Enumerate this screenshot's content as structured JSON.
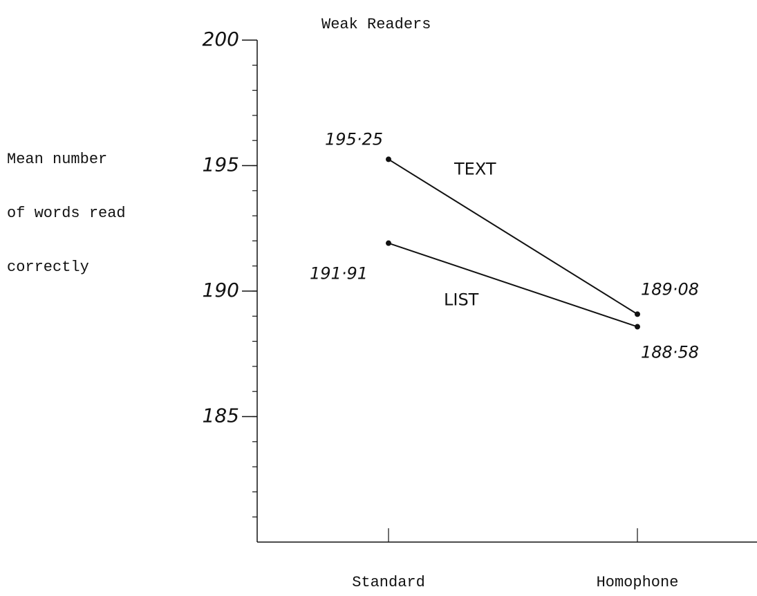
{
  "chart_data": {
    "type": "line",
    "title": "Weak Readers",
    "ylabel": [
      "Mean number",
      "of words read",
      "correctly"
    ],
    "categories": [
      "Standard",
      "Homophone"
    ],
    "series": [
      {
        "name": "TEXT",
        "color": "#111111",
        "values": [
          195.25,
          189.08
        ],
        "value_labels": [
          "195·25",
          "189·08"
        ]
      },
      {
        "name": "LIST",
        "color": "#111111",
        "values": [
          191.91,
          188.58
        ],
        "value_labels": [
          "191·91",
          "188·58"
        ]
      }
    ],
    "ylim": [
      180,
      200
    ],
    "yticks": [
      185,
      190,
      195,
      200
    ],
    "grid": false
  }
}
